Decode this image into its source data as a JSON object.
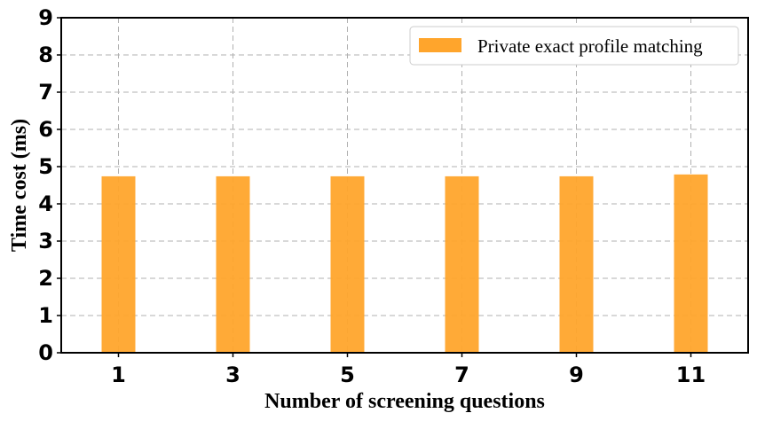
{
  "chart_data": {
    "type": "bar",
    "categories": [
      "1",
      "3",
      "5",
      "7",
      "9",
      "11"
    ],
    "series": [
      {
        "name": "Private exact profile matching",
        "values": [
          4.74,
          4.74,
          4.74,
          4.74,
          4.74,
          4.79
        ],
        "color": "#FFA52C"
      }
    ],
    "xlabel": "Number of screening questions",
    "ylabel": "Time cost (ms)",
    "ylim": [
      0,
      9
    ],
    "yticks": [
      "0",
      "1",
      "2",
      "3",
      "4",
      "5",
      "6",
      "7",
      "8",
      "9"
    ],
    "grid": true,
    "legend_position": "top-right"
  }
}
